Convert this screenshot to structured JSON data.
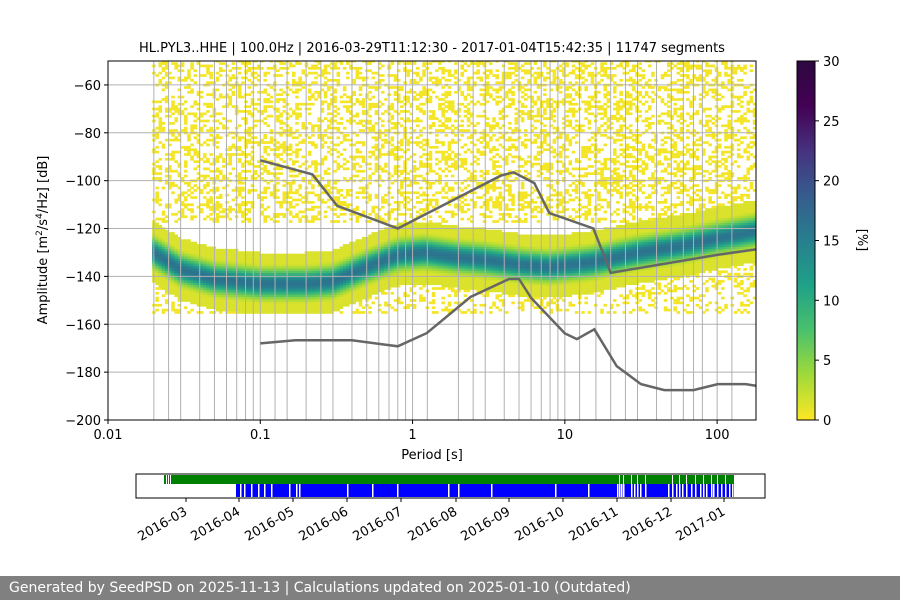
{
  "chart_data": {
    "type": "heatmap",
    "title": "HL.PYL3..HHE | 100.0Hz | 2016-03-29T11:12:30 - 2017-01-04T15:42:35 | 11747 segments",
    "xlabel": "Period [s]",
    "ylabel_parts": {
      "pre": "Amplitude [m",
      "sup1": "2",
      "mid": "/s",
      "sup2": "4",
      "post": "/Hz] [dB]"
    },
    "xscale": "log",
    "xlim": [
      0.01,
      180
    ],
    "ylim": [
      -200,
      -50
    ],
    "xticks": [
      {
        "value": 0.01,
        "label": "0.01"
      },
      {
        "value": 0.1,
        "label": "0.1"
      },
      {
        "value": 1,
        "label": "1"
      },
      {
        "value": 10,
        "label": "10"
      },
      {
        "value": 100,
        "label": "100"
      }
    ],
    "yticks": [
      {
        "value": -60,
        "label": "−60"
      },
      {
        "value": -80,
        "label": "−80"
      },
      {
        "value": -100,
        "label": "−100"
      },
      {
        "value": -120,
        "label": "−120"
      },
      {
        "value": -140,
        "label": "−140"
      },
      {
        "value": -160,
        "label": "−160"
      },
      {
        "value": -180,
        "label": "−180"
      },
      {
        "value": -200,
        "label": "−200"
      }
    ],
    "period_gridlines": [
      0.02,
      0.025,
      0.03,
      0.04,
      0.05,
      0.06,
      0.07,
      0.08,
      0.09,
      0.1,
      0.125,
      0.15,
      0.2,
      0.25,
      0.3,
      0.4,
      0.5,
      0.6,
      0.7,
      0.8,
      0.9,
      1,
      1.25,
      2,
      2.5,
      3,
      4,
      5,
      6,
      7,
      8,
      9,
      10,
      12.5,
      16,
      20,
      25,
      30,
      40,
      50,
      60,
      70,
      80,
      100,
      125
    ],
    "grid": true,
    "density_max_ridge": [
      [
        0.02,
        -130
      ],
      [
        0.03,
        -137
      ],
      [
        0.05,
        -141
      ],
      [
        0.1,
        -143
      ],
      [
        0.2,
        -143
      ],
      [
        0.3,
        -142
      ],
      [
        0.5,
        -136
      ],
      [
        0.8,
        -131
      ],
      [
        1.2,
        -130
      ],
      [
        2,
        -132
      ],
      [
        3,
        -133
      ],
      [
        5,
        -135
      ],
      [
        8,
        -136
      ],
      [
        15,
        -134
      ],
      [
        30,
        -130
      ],
      [
        60,
        -127
      ],
      [
        100,
        -124
      ],
      [
        180,
        -121
      ]
    ],
    "colorbar": {
      "label": "[%]",
      "min": 0,
      "max": 30,
      "ticks": [
        "0",
        "5",
        "10",
        "15",
        "20",
        "25",
        "30"
      ]
    },
    "nhnm": [
      [
        0.1,
        -91.5
      ],
      [
        0.22,
        -97.4
      ],
      [
        0.32,
        -110.5
      ],
      [
        0.8,
        -120
      ],
      [
        3.8,
        -97.9
      ],
      [
        4.6,
        -96.5
      ],
      [
        6.3,
        -101
      ],
      [
        7.9,
        -113.5
      ],
      [
        15.4,
        -120
      ],
      [
        20,
        -138.5
      ],
      [
        100,
        -131
      ],
      [
        180,
        -128.7
      ]
    ],
    "nlnm": [
      [
        0.1,
        -168
      ],
      [
        0.17,
        -166.7
      ],
      [
        0.4,
        -166.7
      ],
      [
        0.8,
        -169.2
      ],
      [
        1.24,
        -163.7
      ],
      [
        2.4,
        -148.6
      ],
      [
        4.3,
        -141.1
      ],
      [
        5,
        -141.1
      ],
      [
        6,
        -149
      ],
      [
        10,
        -163.8
      ],
      [
        12,
        -166.2
      ],
      [
        15.6,
        -162.1
      ],
      [
        21.9,
        -177.5
      ],
      [
        31.6,
        -185
      ],
      [
        45,
        -187.5
      ],
      [
        70,
        -187.5
      ],
      [
        101,
        -185
      ],
      [
        154,
        -185
      ],
      [
        180,
        -185.7
      ]
    ],
    "timeline": {
      "ticks": [
        "2016-03",
        "2016-04",
        "2016-05",
        "2016-06",
        "2016-07",
        "2016-08",
        "2016-09",
        "2016-10",
        "2016-11",
        "2016-12",
        "2017-01"
      ],
      "data_coverage_color": "#008000",
      "psd_coverage_color": "#0000ff"
    },
    "colors": {
      "nm_curves": "#666666",
      "grid": "#b0b0b0"
    }
  },
  "footer": {
    "text": "Generated by SeedPSD on 2025-11-13 | Calculations updated on 2025-01-10 (Outdated)"
  }
}
